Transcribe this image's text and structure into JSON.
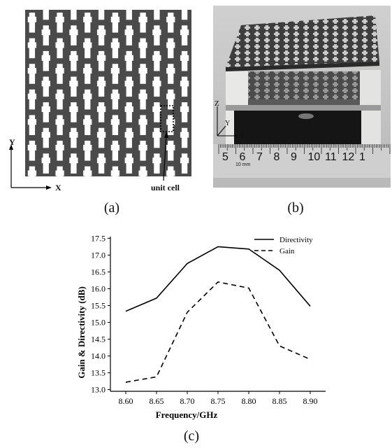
{
  "panel_a": {
    "axis_y": "Y",
    "axis_x": "X",
    "annotation": "unit cell",
    "caption": "(a)"
  },
  "panel_b": {
    "axis_z": "Z",
    "axis_y": "Y",
    "axis_x": "X",
    "ruler_numbers": [
      "5",
      "6",
      "7",
      "8",
      "9",
      "10",
      "11",
      "12",
      "1"
    ],
    "ruler_small_text": "10 mm",
    "caption": "(b)"
  },
  "panel_c": {
    "caption": "(c)",
    "chart_data": {
      "type": "line",
      "x": [
        8.6,
        8.65,
        8.7,
        8.75,
        8.8,
        8.85,
        8.9
      ],
      "x_ticks": [
        "8.60",
        "8.65",
        "8.70",
        "8.75",
        "8.80",
        "8.85",
        "8.90"
      ],
      "y_ticks": [
        "13.0",
        "13.5",
        "14.0",
        "14.5",
        "15.0",
        "15.5",
        "16.0",
        "16.5",
        "17.0",
        "17.5"
      ],
      "series": [
        {
          "name": "Directivity",
          "style": "solid",
          "values": [
            15.33,
            15.72,
            16.75,
            17.25,
            17.18,
            16.55,
            15.48
          ]
        },
        {
          "name": "Gain",
          "style": "dashed",
          "values": [
            13.22,
            13.38,
            15.3,
            16.2,
            16.02,
            14.3,
            13.9
          ]
        }
      ],
      "xlabel": "Frequency/GHz",
      "ylabel": "Gain & Directivity (dB)",
      "xlim": [
        8.575,
        8.925
      ],
      "ylim": [
        12.95,
        17.55
      ],
      "legend": "top-right",
      "grid": false
    }
  }
}
